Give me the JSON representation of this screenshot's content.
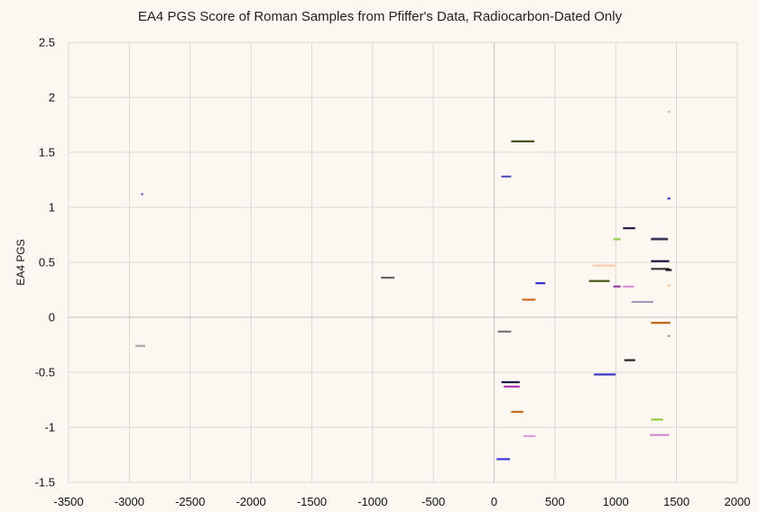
{
  "chart_data": {
    "type": "scatter",
    "title": "EA4 PGS Score of Roman Samples from Pfiffer's Data, Radiocarbon-Dated Only",
    "xlabel": "",
    "ylabel": "EA4 PGS",
    "xlim": [
      -3500,
      2000
    ],
    "ylim": [
      -1.5,
      2.5
    ],
    "x_ticks": [
      "-3500",
      "-3000",
      "-2500",
      "-2000",
      "-1500",
      "-1000",
      "-500",
      "0",
      "500",
      "1000",
      "1500",
      "2000"
    ],
    "y_ticks": [
      "-1.5",
      "-1",
      "-0.5",
      "0",
      "0.5",
      "1",
      "1.5",
      "2",
      "2.5"
    ],
    "grid": true,
    "note": "Each sample is drawn as a short horizontal segment spanning its radiocarbon date range.",
    "samples": [
      {
        "x_start": -2905,
        "x_end": -2885,
        "y": 1.12,
        "color": "#6b6bd6"
      },
      {
        "x_start": -2950,
        "x_end": -2870,
        "y": -0.26,
        "color": "#a8a8a8"
      },
      {
        "x_start": -930,
        "x_end": -820,
        "y": 0.36,
        "color": "#666666"
      },
      {
        "x_start": 140,
        "x_end": 330,
        "y": 1.6,
        "color": "#3b4a12"
      },
      {
        "x_start": 60,
        "x_end": 140,
        "y": 1.28,
        "color": "#5555bb"
      },
      {
        "x_start": 340,
        "x_end": 420,
        "y": 0.31,
        "color": "#2d2dc8"
      },
      {
        "x_start": 230,
        "x_end": 340,
        "y": 0.16,
        "color": "#cc6a1a"
      },
      {
        "x_start": 30,
        "x_end": 140,
        "y": -0.13,
        "color": "#777777"
      },
      {
        "x_start": 60,
        "x_end": 210,
        "y": -0.59,
        "color": "#1b1b4a"
      },
      {
        "x_start": 80,
        "x_end": 210,
        "y": -0.63,
        "color": "#b43ab4"
      },
      {
        "x_start": 140,
        "x_end": 240,
        "y": -0.86,
        "color": "#cc6a1a"
      },
      {
        "x_start": 240,
        "x_end": 340,
        "y": -1.08,
        "color": "#d9a0d9"
      },
      {
        "x_start": 20,
        "x_end": 130,
        "y": -1.29,
        "color": "#3b3bdd"
      },
      {
        "x_start": 810,
        "x_end": 1000,
        "y": 0.47,
        "color": "#ffccaa"
      },
      {
        "x_start": 780,
        "x_end": 950,
        "y": 0.33,
        "color": "#4a5a1a"
      },
      {
        "x_start": 980,
        "x_end": 1040,
        "y": 0.71,
        "color": "#99cc55"
      },
      {
        "x_start": 1060,
        "x_end": 1160,
        "y": 0.81,
        "color": "#1b1b44"
      },
      {
        "x_start": 980,
        "x_end": 1040,
        "y": 0.28,
        "color": "#a040a0"
      },
      {
        "x_start": 1060,
        "x_end": 1150,
        "y": 0.28,
        "color": "#d890d8"
      },
      {
        "x_start": 1130,
        "x_end": 1310,
        "y": 0.14,
        "color": "#a0a0b8"
      },
      {
        "x_start": 820,
        "x_end": 1000,
        "y": -0.52,
        "color": "#3030c8"
      },
      {
        "x_start": 1070,
        "x_end": 1160,
        "y": -0.39,
        "color": "#222222"
      },
      {
        "x_start": 1290,
        "x_end": 1420,
        "y": 0.72,
        "color": "#c0c0c8"
      },
      {
        "x_start": 1290,
        "x_end": 1430,
        "y": 0.71,
        "color": "#2a2a4a"
      },
      {
        "x_start": 1290,
        "x_end": 1440,
        "y": 0.51,
        "color": "#1b1b44"
      },
      {
        "x_start": 1290,
        "x_end": 1440,
        "y": 0.44,
        "color": "#333333"
      },
      {
        "x_start": 1410,
        "x_end": 1460,
        "y": 0.43,
        "color": "#111111"
      },
      {
        "x_start": 1290,
        "x_end": 1450,
        "y": -0.05,
        "color": "#c0681a"
      },
      {
        "x_start": 1290,
        "x_end": 1390,
        "y": -0.93,
        "color": "#99cc44"
      },
      {
        "x_start": 1280,
        "x_end": 1440,
        "y": -1.07,
        "color": "#cf88cf"
      },
      {
        "x_start": 1425,
        "x_end": 1450,
        "y": 1.87,
        "color": "#e0c0c0"
      },
      {
        "x_start": 1425,
        "x_end": 1450,
        "y": 1.08,
        "color": "#4040cc"
      },
      {
        "x_start": 1425,
        "x_end": 1450,
        "y": 0.29,
        "color": "#ffcc99"
      },
      {
        "x_start": 1425,
        "x_end": 1450,
        "y": -0.17,
        "color": "#a0a0a0"
      }
    ]
  },
  "colors": {
    "background": "#fdf7f2",
    "grid": "#d9d9d9",
    "zero_axis": "#bfbfbf",
    "text": "#111111"
  }
}
